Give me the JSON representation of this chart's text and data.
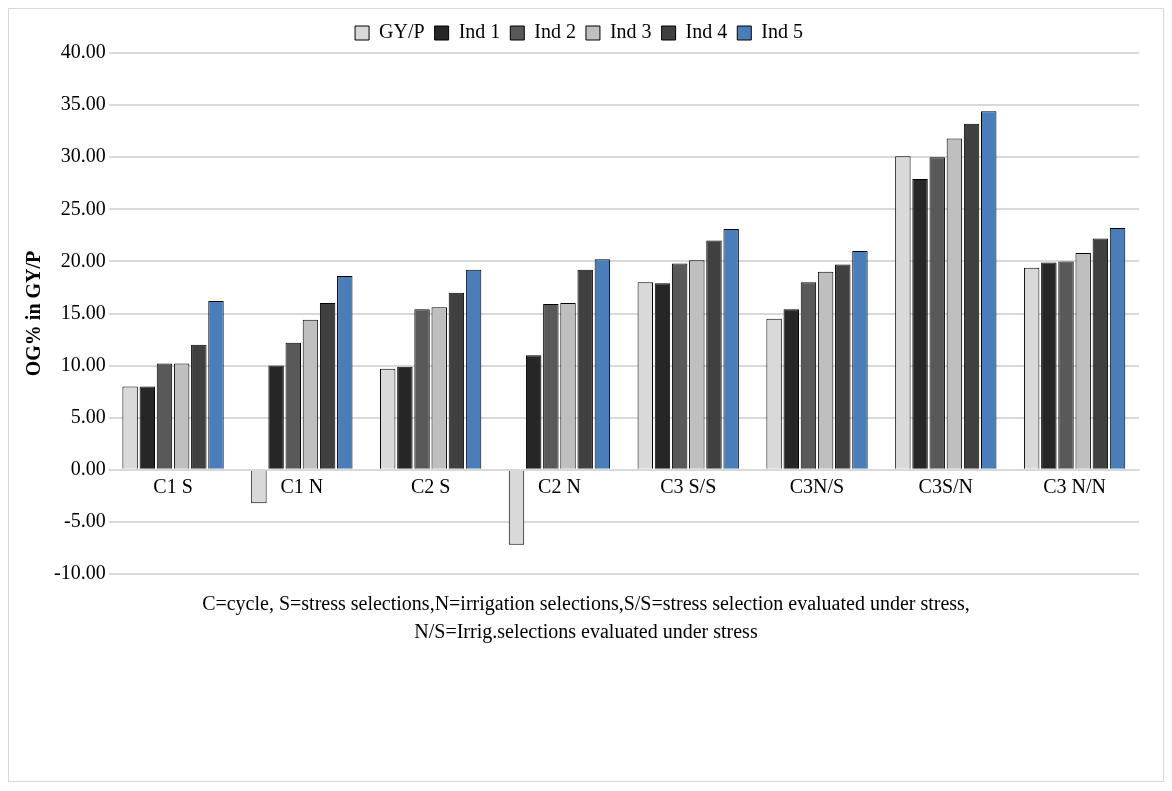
{
  "chart_data": {
    "type": "bar",
    "ylabel": "OG% in GY/P",
    "categories": [
      "C1 S",
      "C1 N",
      "C2 S",
      "C2 N",
      "C3 S/S",
      "C3N/S",
      "C3S/N",
      "C3 N/N"
    ],
    "series": [
      {
        "name": "GY/P",
        "color": "#d9d9d9",
        "values": [
          8.0,
          -3.2,
          9.7,
          -7.2,
          18.0,
          14.5,
          30.1,
          19.4
        ]
      },
      {
        "name": "Ind 1",
        "color": "#262626",
        "values": [
          8.0,
          10.0,
          9.9,
          11.0,
          17.9,
          15.4,
          27.9,
          19.9
        ]
      },
      {
        "name": "Ind 2",
        "color": "#595959",
        "values": [
          10.2,
          12.2,
          15.4,
          15.9,
          19.8,
          18.0,
          30.0,
          20.0
        ]
      },
      {
        "name": "Ind 3",
        "color": "#bfbfbf",
        "values": [
          10.2,
          14.4,
          15.6,
          16.0,
          20.1,
          19.0,
          31.8,
          20.8
        ]
      },
      {
        "name": "Ind 4",
        "color": "#404040",
        "values": [
          12.0,
          16.0,
          17.0,
          19.2,
          22.0,
          19.7,
          33.2,
          22.2
        ]
      },
      {
        "name": "Ind 5",
        "color": "#4a7ebb",
        "values": [
          16.2,
          18.6,
          19.2,
          20.2,
          23.1,
          21.0,
          34.4,
          23.2
        ]
      }
    ],
    "ylim": [
      -10,
      40
    ],
    "yticks": [
      {
        "value": -10,
        "label": "-10.00"
      },
      {
        "value": -5,
        "label": "-5.00"
      },
      {
        "value": 0,
        "label": "0.00"
      },
      {
        "value": 5,
        "label": "5.00"
      },
      {
        "value": 10,
        "label": "10.00"
      },
      {
        "value": 15,
        "label": "15.00"
      },
      {
        "value": 20,
        "label": "20.00"
      },
      {
        "value": 25,
        "label": "25.00"
      },
      {
        "value": 30,
        "label": "30.00"
      },
      {
        "value": 35,
        "label": "35.00"
      },
      {
        "value": 40,
        "label": "40.00"
      }
    ],
    "grid": "y",
    "legend": "top",
    "annotations": [
      "C=cycle, S=stress selections,N=irrigation selections,S/S=stress selection evaluated under stress, N/S=Irrig.selections evaluated under stress"
    ]
  }
}
